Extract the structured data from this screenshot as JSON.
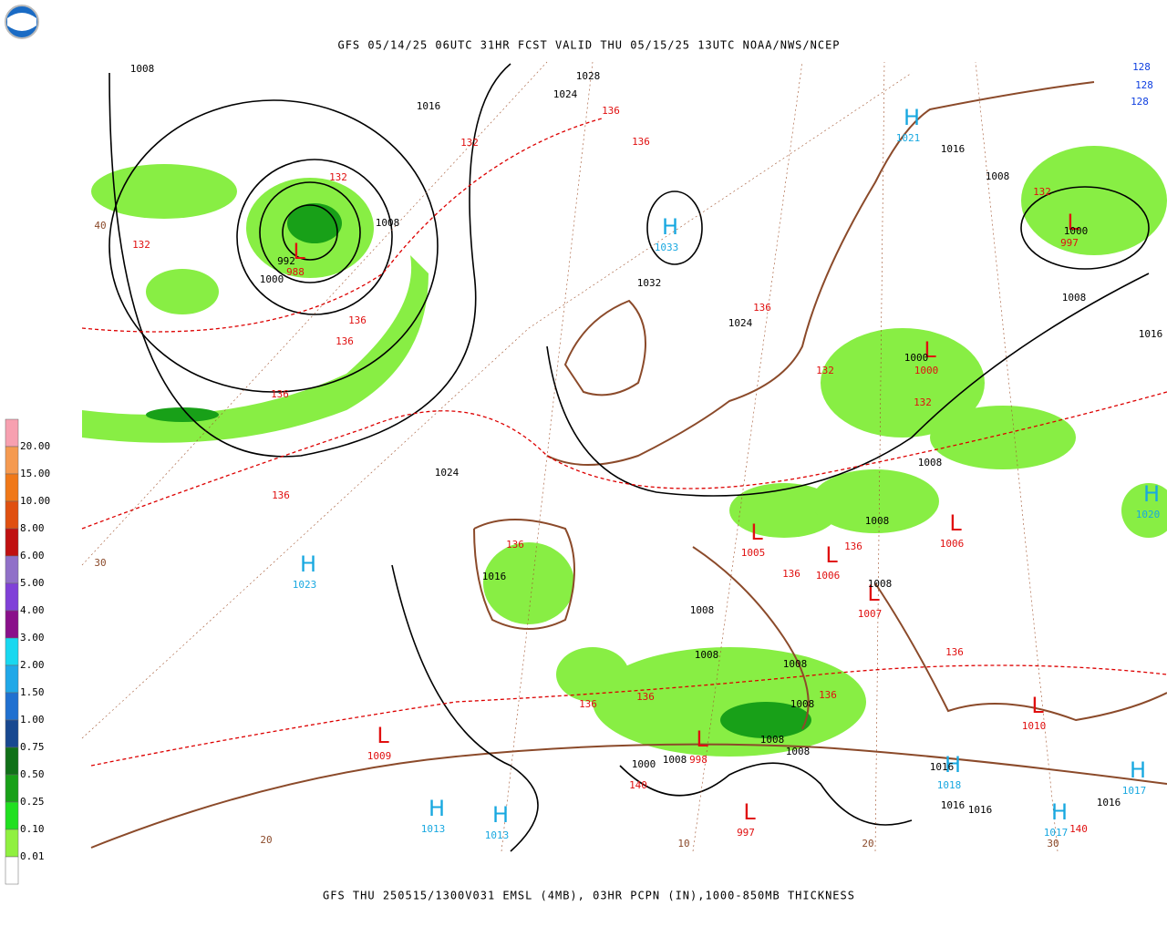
{
  "header": {
    "title": "GFS 05/14/25 06UTC 31HR FCST VALID THU 05/15/25 13UTC NOAA/NWS/NCEP"
  },
  "footer": {
    "caption": "GFS THU 250515/1300V031 EMSL (4MB), 03HR PCPN (IN),1000-850MB THICKNESS"
  },
  "legend": {
    "labels": [
      "20.00",
      "15.00",
      "10.00",
      "8.00",
      "6.00",
      "5.00",
      "4.00",
      "3.00",
      "2.00",
      "1.50",
      "1.00",
      "0.75",
      "0.50",
      "0.25",
      "0.10",
      "0.01"
    ],
    "colors": [
      "#f7a0b0",
      "#f59a50",
      "#f07818",
      "#e05010",
      "#c01010",
      "#9070c8",
      "#8040d8",
      "#8a108a",
      "#18d8f0",
      "#20a8e8",
      "#2070d0",
      "#184890",
      "#107018",
      "#18a018",
      "#20e020",
      "#90f040",
      "#ffffff"
    ]
  },
  "map": {
    "centers": [
      {
        "letter": "H",
        "value": "1033"
      },
      {
        "letter": "H",
        "value": "1023"
      },
      {
        "letter": "H",
        "value": "1013"
      },
      {
        "letter": "H",
        "value": "1013"
      },
      {
        "letter": "H",
        "value": "1021"
      },
      {
        "letter": "H",
        "value": "1020"
      },
      {
        "letter": "H",
        "value": "1018"
      },
      {
        "letter": "H",
        "value": "1017"
      },
      {
        "letter": "H",
        "value": "1017"
      },
      {
        "letter": "L",
        "value": "988"
      },
      {
        "letter": "L",
        "value": "997"
      },
      {
        "letter": "L",
        "value": "1000"
      },
      {
        "letter": "L",
        "value": "1005"
      },
      {
        "letter": "L",
        "value": "1006"
      },
      {
        "letter": "L",
        "value": "1006"
      },
      {
        "letter": "L",
        "value": "1007"
      },
      {
        "letter": "L",
        "value": "1010"
      },
      {
        "letter": "L",
        "value": "1009"
      },
      {
        "letter": "L",
        "value": "998"
      },
      {
        "letter": "L",
        "value": "997"
      }
    ],
    "isobar_labels": [
      "1008",
      "1028",
      "1024",
      "1016",
      "1008",
      "992",
      "1000",
      "1032",
      "1024",
      "1016",
      "1008",
      "1000",
      "1008",
      "1016",
      "1000",
      "1024",
      "1016",
      "1008",
      "1008",
      "1008",
      "1008",
      "1008",
      "1008",
      "1000",
      "1008",
      "1008",
      "1008",
      "1008",
      "1016",
      "1016",
      "1016",
      "1016"
    ],
    "thickness_labels": [
      "132",
      "132",
      "136",
      "136",
      "132",
      "136",
      "136",
      "136",
      "136",
      "136",
      "132",
      "132",
      "136",
      "136",
      "136",
      "132",
      "136",
      "136",
      "136",
      "140",
      "136",
      "140"
    ],
    "thickness_blue_labels": [
      "128",
      "128",
      "128"
    ],
    "grid_labels": [
      "30",
      "40",
      "10",
      "20",
      "30",
      "20"
    ]
  }
}
